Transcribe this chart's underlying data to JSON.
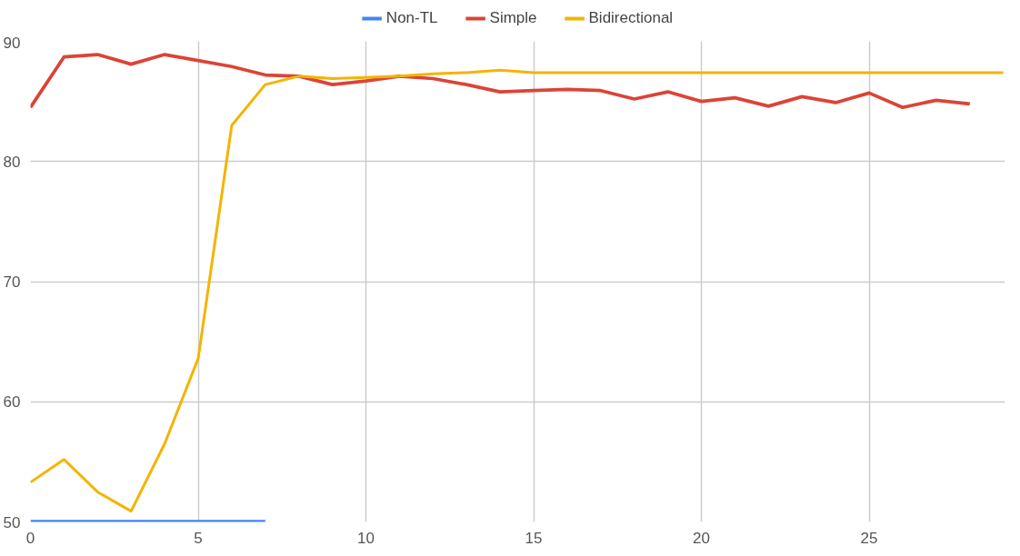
{
  "chart_data": {
    "type": "line",
    "x": [
      0,
      1,
      2,
      3,
      4,
      5,
      6,
      7,
      8,
      9,
      10,
      11,
      12,
      13,
      14,
      15,
      16,
      17,
      18,
      19,
      20,
      21,
      22,
      23,
      24,
      25,
      26,
      27,
      28,
      29
    ],
    "series": [
      {
        "name": "Non-TL",
        "color": "#4285f4",
        "x": [
          0,
          1,
          2,
          3,
          4,
          5,
          6,
          7
        ],
        "values": [
          50,
          50,
          50,
          50,
          50,
          50,
          50,
          50
        ]
      },
      {
        "name": "Simple",
        "color": "#db4437",
        "x": [
          0,
          1,
          2,
          3,
          4,
          5,
          6,
          7,
          8,
          9,
          10,
          11,
          12,
          13,
          14,
          15,
          16,
          17,
          18,
          19,
          20,
          21,
          22,
          23,
          24,
          25,
          26,
          27,
          28
        ],
        "values": [
          84.5,
          88.7,
          88.9,
          88.1,
          88.9,
          88.4,
          87.9,
          87.2,
          87.1,
          86.4,
          86.7,
          87.1,
          86.9,
          86.4,
          85.8,
          85.9,
          86.0,
          85.9,
          85.2,
          85.8,
          85.0,
          85.3,
          84.6,
          85.4,
          84.9,
          85.7,
          84.5,
          85.1,
          84.8
        ]
      },
      {
        "name": "Bidirectional",
        "color": "#f4b400",
        "values": [
          53.3,
          55.2,
          52.5,
          50.9,
          56.5,
          63.6,
          83.0,
          86.4,
          87.1,
          86.9,
          87.0,
          87.1,
          87.3,
          87.4,
          87.6,
          87.4,
          87.4,
          87.4,
          87.4,
          87.4,
          87.4,
          87.4,
          87.4,
          87.4,
          87.4,
          87.4,
          87.4,
          87.4,
          87.4,
          87.4
        ]
      }
    ],
    "xlim": [
      0,
      29.05
    ],
    "ylim": [
      50,
      90
    ],
    "xticks": [
      0,
      5,
      10,
      15,
      20,
      25
    ],
    "yticks": [
      50,
      60,
      70,
      80,
      90
    ],
    "grid": true,
    "legend": "top",
    "marker": "none",
    "line_style": "solid"
  }
}
